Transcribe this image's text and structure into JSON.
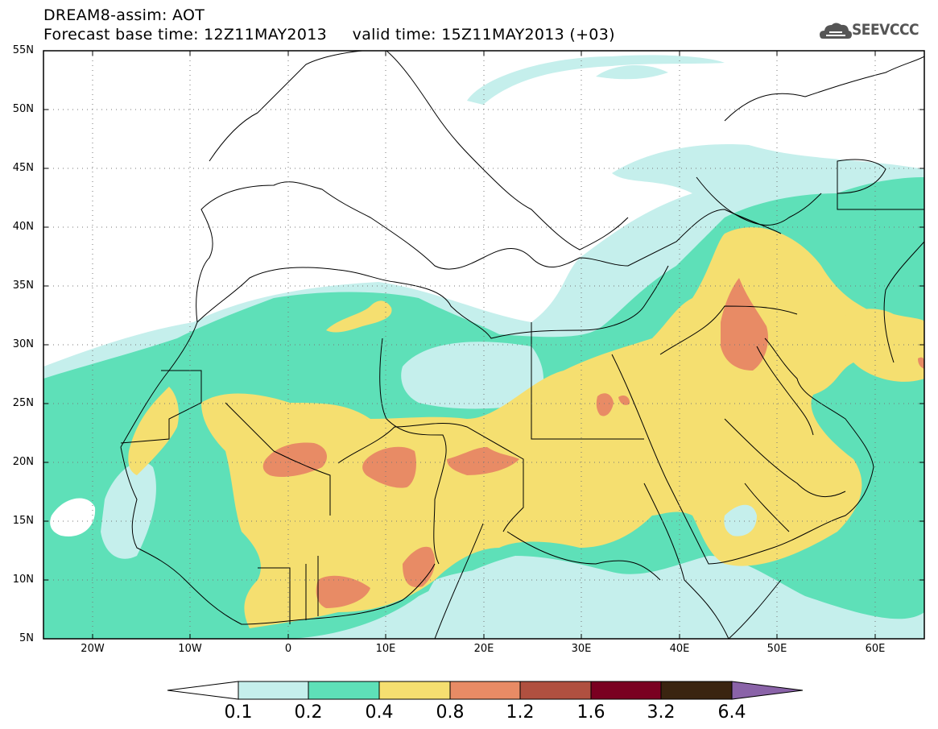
{
  "header": {
    "title_line1": "DREAM8-assim: AOT",
    "title_line2": "Forecast base time: 12Z11MAY2013     valid time: 15Z11MAY2013 (+03)",
    "logo_text": "SEEVCCC"
  },
  "map": {
    "projection": "lat-lon",
    "lon_range": [
      -25,
      65
    ],
    "lat_range": [
      5,
      55
    ],
    "gridlines": "dotted",
    "lat_labels": [
      "55N",
      "50N",
      "45N",
      "40N",
      "35N",
      "30N",
      "25N",
      "20N",
      "15N",
      "10N",
      "5N"
    ],
    "lon_labels": [
      "20W",
      "10W",
      "0",
      "10E",
      "20E",
      "30E",
      "40E",
      "50E",
      "60E"
    ]
  },
  "colorbar": {
    "labels": [
      "0.1",
      "0.2",
      "0.4",
      "0.8",
      "1.2",
      "1.6",
      "3.2",
      "6.4"
    ],
    "colors": [
      "#ffffff",
      "#c5efec",
      "#5ee0b8",
      "#f5df70",
      "#e88b65",
      "#b05040",
      "#7a0021",
      "#3a2410",
      "#8a63a8"
    ]
  },
  "field_colors": {
    "c1": "#c5efec",
    "c2": "#5ee0b8",
    "c3": "#f5df70",
    "c4": "#e88b65"
  }
}
